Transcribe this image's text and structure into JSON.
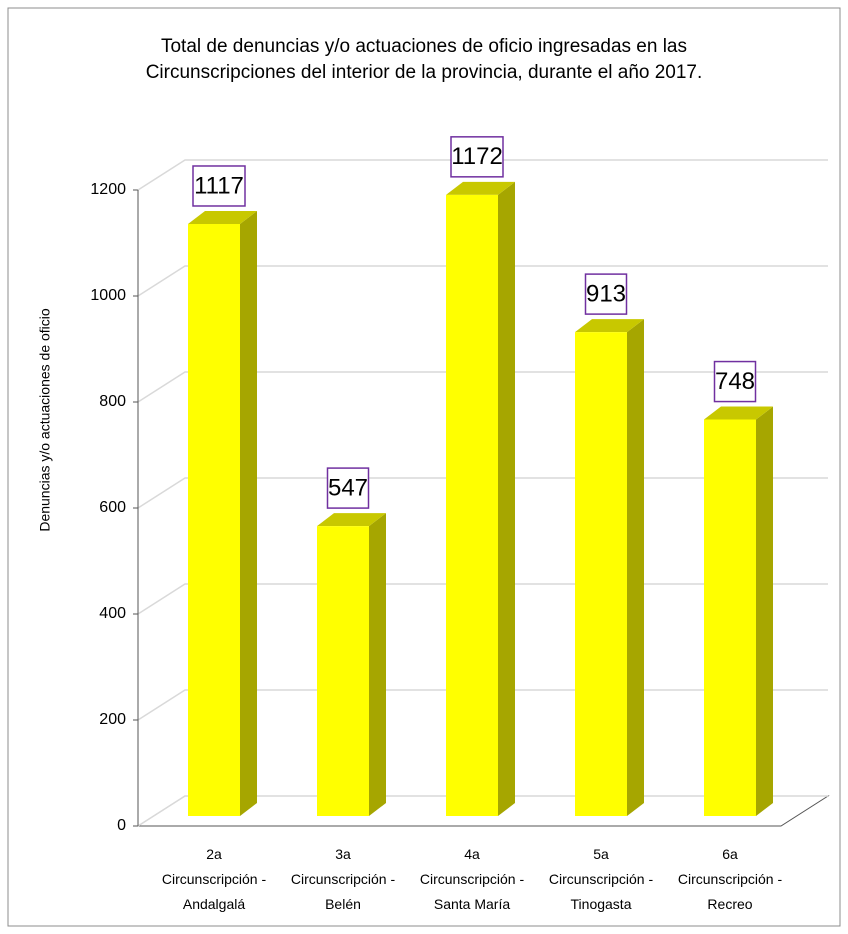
{
  "chart_data": {
    "type": "bar3d",
    "title": "Total de denuncias y/o actuaciones de oficio ingresadas en las Circunscripciones del interior de la provincia, durante el año 2017.",
    "y_label": "Denuncias y/o actuaciones de oficio",
    "categories": [
      "2a Circunscripción - Andalgalá",
      "3a Circunscripción - Belén",
      "4a Circunscripción - Santa María",
      "5a Circunscripción - Tinogasta",
      "6a Circunscripción - Recreo"
    ],
    "values": [
      1117,
      547,
      1172,
      913,
      748
    ],
    "color": "#ffff00",
    "ylim": [
      0,
      1200
    ],
    "yticks": [
      0,
      200,
      400,
      600,
      800,
      1000,
      1200
    ],
    "grid": true
  }
}
